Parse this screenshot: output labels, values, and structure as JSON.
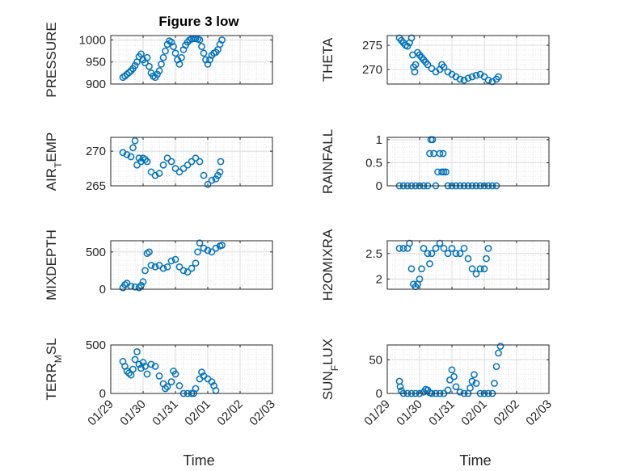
{
  "figure": {
    "title": "Figure 3 low",
    "marker_color": "#0072BD",
    "axis_color": "#262626",
    "grid_color": "#dcdcdc"
  },
  "chart_data": [
    {
      "type": "scatter",
      "ylabel_main": "PRESSURE",
      "ylabel_sub": "",
      "ylabel_tail": "",
      "ylim": [
        900,
        1010
      ],
      "yticks": [
        900,
        950,
        1000
      ],
      "xlim": [
        0,
        4
      ],
      "xticks": [
        "01/29",
        "01/30",
        "01/31",
        "02/01",
        "02/02",
        "02/03"
      ],
      "show_xticklabels": false,
      "title": "Figure 3 low",
      "points": [
        [
          0.3,
          915
        ],
        [
          0.35,
          918
        ],
        [
          0.4,
          922
        ],
        [
          0.45,
          926
        ],
        [
          0.5,
          930
        ],
        [
          0.55,
          935
        ],
        [
          0.6,
          942
        ],
        [
          0.65,
          950
        ],
        [
          0.7,
          962
        ],
        [
          0.75,
          968
        ],
        [
          0.8,
          955
        ],
        [
          0.85,
          948
        ],
        [
          0.9,
          960
        ],
        [
          0.95,
          940
        ],
        [
          1.0,
          925
        ],
        [
          1.05,
          918
        ],
        [
          1.1,
          915
        ],
        [
          1.15,
          922
        ],
        [
          1.2,
          930
        ],
        [
          1.25,
          945
        ],
        [
          1.3,
          960
        ],
        [
          1.35,
          975
        ],
        [
          1.4,
          990
        ],
        [
          1.45,
          998
        ],
        [
          1.5,
          995
        ],
        [
          1.55,
          985
        ],
        [
          1.6,
          970
        ],
        [
          1.65,
          955
        ],
        [
          1.7,
          945
        ],
        [
          1.75,
          960
        ],
        [
          1.8,
          978
        ],
        [
          1.85,
          988
        ],
        [
          1.9,
          995
        ],
        [
          1.95,
          1000
        ],
        [
          2.0,
          1002
        ],
        [
          2.05,
          1003
        ],
        [
          2.1,
          1003
        ],
        [
          2.15,
          1002
        ],
        [
          2.2,
          1000
        ],
        [
          2.25,
          985
        ],
        [
          2.3,
          970
        ],
        [
          2.35,
          955
        ],
        [
          2.4,
          945
        ],
        [
          2.45,
          955
        ],
        [
          2.5,
          965
        ],
        [
          2.55,
          970
        ],
        [
          2.6,
          972
        ],
        [
          2.65,
          978
        ],
        [
          2.7,
          990
        ],
        [
          2.75,
          1000
        ]
      ]
    },
    {
      "type": "scatter",
      "ylabel_main": "THETA",
      "ylabel_sub": "",
      "ylabel_tail": "",
      "ylim": [
        267,
        277
      ],
      "yticks": [
        270,
        275
      ],
      "xlim": [
        0,
        4
      ],
      "xticks": [
        "01/29",
        "01/30",
        "01/31",
        "02/01",
        "02/02",
        "02/03"
      ],
      "show_xticklabels": false,
      "title": "",
      "points": [
        [
          0.3,
          276.5
        ],
        [
          0.35,
          276
        ],
        [
          0.4,
          275.5
        ],
        [
          0.45,
          275
        ],
        [
          0.5,
          274.8
        ],
        [
          0.55,
          275.5
        ],
        [
          0.6,
          276.5
        ],
        [
          0.63,
          273
        ],
        [
          0.65,
          270.5
        ],
        [
          0.68,
          269.5
        ],
        [
          0.7,
          271
        ],
        [
          0.75,
          273.5
        ],
        [
          0.8,
          273
        ],
        [
          0.85,
          272.5
        ],
        [
          0.9,
          272
        ],
        [
          0.95,
          271.5
        ],
        [
          1.0,
          271
        ],
        [
          1.1,
          270.2
        ],
        [
          1.2,
          269.5
        ],
        [
          1.3,
          270
        ],
        [
          1.35,
          271
        ],
        [
          1.4,
          270.5
        ],
        [
          1.5,
          269.5
        ],
        [
          1.6,
          269
        ],
        [
          1.7,
          268.5
        ],
        [
          1.8,
          268
        ],
        [
          1.9,
          267.8
        ],
        [
          2.0,
          268.2
        ],
        [
          2.1,
          268.5
        ],
        [
          2.2,
          268.8
        ],
        [
          2.3,
          269
        ],
        [
          2.4,
          268.5
        ],
        [
          2.5,
          267.8
        ],
        [
          2.6,
          267.5
        ],
        [
          2.7,
          268
        ],
        [
          2.75,
          268.5
        ]
      ]
    },
    {
      "type": "scatter",
      "ylabel_main": "AIR",
      "ylabel_sub": "T",
      "ylabel_tail": "EMP",
      "ylim": [
        265,
        272
      ],
      "yticks": [
        265,
        270
      ],
      "xlim": [
        0,
        4
      ],
      "xticks": [
        "01/29",
        "01/30",
        "01/31",
        "02/01",
        "02/02",
        "02/03"
      ],
      "show_xticklabels": false,
      "title": "",
      "points": [
        [
          0.3,
          269.8
        ],
        [
          0.4,
          269.5
        ],
        [
          0.5,
          269.2
        ],
        [
          0.55,
          270.5
        ],
        [
          0.6,
          271.5
        ],
        [
          0.65,
          268
        ],
        [
          0.7,
          269
        ],
        [
          0.75,
          268.5
        ],
        [
          0.8,
          269
        ],
        [
          0.85,
          268.8
        ],
        [
          0.9,
          268.5
        ],
        [
          1.0,
          267
        ],
        [
          1.1,
          266.5
        ],
        [
          1.2,
          266.8
        ],
        [
          1.3,
          268
        ],
        [
          1.4,
          269
        ],
        [
          1.5,
          268.5
        ],
        [
          1.6,
          267.5
        ],
        [
          1.7,
          267
        ],
        [
          1.8,
          267.5
        ],
        [
          1.9,
          268
        ],
        [
          2.0,
          268.5
        ],
        [
          2.1,
          269
        ],
        [
          2.2,
          268.5
        ],
        [
          2.3,
          266.5
        ],
        [
          2.4,
          265.2
        ],
        [
          2.5,
          265.8
        ],
        [
          2.6,
          266
        ],
        [
          2.65,
          266.5
        ],
        [
          2.7,
          267
        ],
        [
          2.72,
          268.5
        ]
      ]
    },
    {
      "type": "scatter",
      "ylabel_main": "RAINFALL",
      "ylabel_sub": "",
      "ylabel_tail": "",
      "ylim": [
        0,
        1.05
      ],
      "yticks": [
        0,
        0.5,
        1
      ],
      "xlim": [
        0,
        4
      ],
      "xticks": [
        "01/29",
        "01/30",
        "01/31",
        "02/01",
        "02/02",
        "02/03"
      ],
      "show_xticklabels": false,
      "title": "",
      "points": [
        [
          0.3,
          0
        ],
        [
          0.4,
          0
        ],
        [
          0.5,
          0
        ],
        [
          0.6,
          0
        ],
        [
          0.7,
          0
        ],
        [
          0.8,
          0
        ],
        [
          0.9,
          0
        ],
        [
          1.0,
          0
        ],
        [
          1.05,
          0.7
        ],
        [
          1.08,
          1
        ],
        [
          1.12,
          1
        ],
        [
          1.15,
          0.7
        ],
        [
          1.2,
          0
        ],
        [
          1.25,
          0.3
        ],
        [
          1.3,
          0.7
        ],
        [
          1.35,
          0.3
        ],
        [
          1.38,
          0.7
        ],
        [
          1.4,
          0.3
        ],
        [
          1.45,
          0.3
        ],
        [
          1.5,
          0
        ],
        [
          1.6,
          0
        ],
        [
          1.7,
          0
        ],
        [
          1.8,
          0
        ],
        [
          1.9,
          0
        ],
        [
          2.0,
          0
        ],
        [
          2.1,
          0
        ],
        [
          2.2,
          0
        ],
        [
          2.3,
          0
        ],
        [
          2.4,
          0
        ],
        [
          2.5,
          0
        ],
        [
          2.6,
          0
        ],
        [
          2.7,
          0
        ]
      ]
    },
    {
      "type": "scatter",
      "ylabel_main": "MIXDEPTH",
      "ylabel_sub": "",
      "ylabel_tail": "",
      "ylim": [
        0,
        650
      ],
      "yticks": [
        0,
        500
      ],
      "xlim": [
        0,
        4
      ],
      "xticks": [
        "01/29",
        "01/30",
        "01/31",
        "02/01",
        "02/02",
        "02/03"
      ],
      "show_xticklabels": false,
      "title": "",
      "points": [
        [
          0.3,
          20
        ],
        [
          0.35,
          60
        ],
        [
          0.4,
          80
        ],
        [
          0.5,
          40
        ],
        [
          0.6,
          30
        ],
        [
          0.7,
          20
        ],
        [
          0.75,
          50
        ],
        [
          0.8,
          100
        ],
        [
          0.85,
          250
        ],
        [
          0.9,
          480
        ],
        [
          0.95,
          500
        ],
        [
          1.0,
          320
        ],
        [
          1.1,
          300
        ],
        [
          1.2,
          320
        ],
        [
          1.3,
          280
        ],
        [
          1.4,
          300
        ],
        [
          1.5,
          380
        ],
        [
          1.6,
          400
        ],
        [
          1.7,
          300
        ],
        [
          1.8,
          250
        ],
        [
          1.9,
          230
        ],
        [
          2.0,
          280
        ],
        [
          2.1,
          350
        ],
        [
          2.15,
          500
        ],
        [
          2.2,
          620
        ],
        [
          2.3,
          550
        ],
        [
          2.4,
          520
        ],
        [
          2.5,
          500
        ],
        [
          2.6,
          550
        ],
        [
          2.7,
          580
        ],
        [
          2.75,
          590
        ]
      ]
    },
    {
      "type": "scatter",
      "ylabel_main": "H2OMIXRA",
      "ylabel_sub": "",
      "ylabel_tail": "",
      "ylim": [
        1.8,
        2.75
      ],
      "yticks": [
        2,
        2.5
      ],
      "xlim": [
        0,
        4
      ],
      "xticks": [
        "01/29",
        "01/30",
        "01/31",
        "02/01",
        "02/02",
        "02/03"
      ],
      "show_xticklabels": false,
      "title": "",
      "points": [
        [
          0.3,
          2.6
        ],
        [
          0.4,
          2.6
        ],
        [
          0.5,
          2.6
        ],
        [
          0.55,
          2.7
        ],
        [
          0.6,
          2.2
        ],
        [
          0.65,
          1.9
        ],
        [
          0.7,
          1.85
        ],
        [
          0.75,
          1.9
        ],
        [
          0.8,
          2.0
        ],
        [
          0.85,
          2.2
        ],
        [
          0.9,
          2.6
        ],
        [
          1.0,
          2.5
        ],
        [
          1.05,
          2.3
        ],
        [
          1.1,
          2.5
        ],
        [
          1.2,
          2.6
        ],
        [
          1.3,
          2.7
        ],
        [
          1.4,
          2.6
        ],
        [
          1.5,
          2.5
        ],
        [
          1.6,
          2.6
        ],
        [
          1.7,
          2.5
        ],
        [
          1.8,
          2.5
        ],
        [
          1.9,
          2.6
        ],
        [
          2.0,
          2.4
        ],
        [
          2.1,
          2.2
        ],
        [
          2.2,
          2.1
        ],
        [
          2.3,
          2.2
        ],
        [
          2.4,
          2.2
        ],
        [
          2.45,
          2.4
        ],
        [
          2.5,
          2.6
        ]
      ]
    },
    {
      "type": "scatter",
      "ylabel_main": "TERR",
      "ylabel_sub": "M",
      "ylabel_tail": "SL",
      "ylim": [
        0,
        500
      ],
      "yticks": [
        0,
        500
      ],
      "xlim": [
        0,
        4
      ],
      "xticks": [
        "01/29",
        "01/30",
        "01/31",
        "02/01",
        "02/02",
        "02/03"
      ],
      "show_xticklabels": true,
      "title": "",
      "points": [
        [
          0.3,
          330
        ],
        [
          0.35,
          280
        ],
        [
          0.4,
          230
        ],
        [
          0.45,
          210
        ],
        [
          0.5,
          190
        ],
        [
          0.55,
          250
        ],
        [
          0.6,
          350
        ],
        [
          0.65,
          430
        ],
        [
          0.7,
          300
        ],
        [
          0.75,
          260
        ],
        [
          0.8,
          320
        ],
        [
          0.85,
          280
        ],
        [
          0.9,
          200
        ],
        [
          1.0,
          300
        ],
        [
          1.1,
          280
        ],
        [
          1.2,
          180
        ],
        [
          1.3,
          100
        ],
        [
          1.35,
          50
        ],
        [
          1.4,
          70
        ],
        [
          1.5,
          120
        ],
        [
          1.55,
          230
        ],
        [
          1.6,
          200
        ],
        [
          1.7,
          80
        ],
        [
          1.8,
          0
        ],
        [
          1.9,
          0
        ],
        [
          2.0,
          0
        ],
        [
          2.05,
          0
        ],
        [
          2.1,
          50
        ],
        [
          2.2,
          150
        ],
        [
          2.25,
          220
        ],
        [
          2.3,
          180
        ],
        [
          2.4,
          150
        ],
        [
          2.5,
          120
        ],
        [
          2.55,
          80
        ],
        [
          2.6,
          30
        ]
      ]
    },
    {
      "type": "scatter",
      "ylabel_main": "SUN",
      "ylabel_sub": "F",
      "ylabel_tail": "LUX",
      "ylim": [
        0,
        72
      ],
      "yticks": [
        0,
        50
      ],
      "xlim": [
        0,
        4
      ],
      "xticks": [
        "01/29",
        "01/30",
        "01/31",
        "02/01",
        "02/02",
        "02/03"
      ],
      "show_xticklabels": true,
      "title": "",
      "points": [
        [
          0.3,
          18
        ],
        [
          0.32,
          10
        ],
        [
          0.35,
          4
        ],
        [
          0.4,
          0
        ],
        [
          0.5,
          0
        ],
        [
          0.6,
          0
        ],
        [
          0.7,
          0
        ],
        [
          0.8,
          0
        ],
        [
          0.9,
          2
        ],
        [
          0.95,
          6
        ],
        [
          1.0,
          5
        ],
        [
          1.05,
          1
        ],
        [
          1.1,
          0
        ],
        [
          1.2,
          0
        ],
        [
          1.3,
          0
        ],
        [
          1.4,
          0
        ],
        [
          1.5,
          5
        ],
        [
          1.55,
          20
        ],
        [
          1.6,
          35
        ],
        [
          1.65,
          25
        ],
        [
          1.7,
          10
        ],
        [
          1.8,
          2
        ],
        [
          1.9,
          0
        ],
        [
          2.0,
          0
        ],
        [
          2.05,
          8
        ],
        [
          2.1,
          18
        ],
        [
          2.15,
          28
        ],
        [
          2.2,
          15
        ],
        [
          2.3,
          0
        ],
        [
          2.4,
          0
        ],
        [
          2.5,
          0
        ],
        [
          2.6,
          0
        ],
        [
          2.65,
          15
        ],
        [
          2.7,
          40
        ],
        [
          2.75,
          60
        ],
        [
          2.8,
          70
        ]
      ]
    }
  ],
  "xaxis_label": "Time"
}
